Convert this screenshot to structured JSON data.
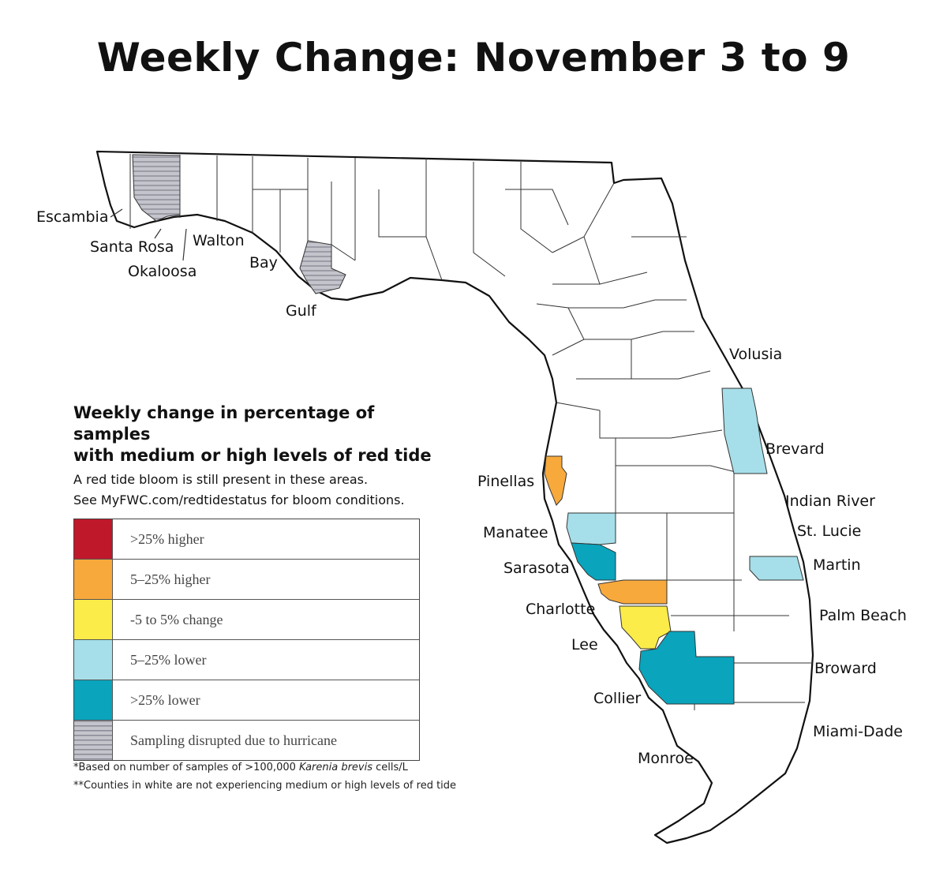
{
  "title": "Weekly Change: November 3 to 9",
  "legend": {
    "heading_line1": "Weekly change in percentage of samples",
    "heading_line2": "with medium or high levels of red tide",
    "sub_line1": "A red tide bloom is still present in these areas.",
    "sub_line2": "See MyFWC.com/redtidestatus for bloom conditions.",
    "items": [
      {
        "label": ">25% higher",
        "color": "#c0182b",
        "pattern": "solid"
      },
      {
        "label": "5–25% higher",
        "color": "#f7a93b",
        "pattern": "solid"
      },
      {
        "label": "-5 to 5% change",
        "color": "#fbec49",
        "pattern": "solid"
      },
      {
        "label": "5–25% lower",
        "color": "#a6dfe9",
        "pattern": "solid"
      },
      {
        "label": ">25% lower",
        "color": "#0aa4bc",
        "pattern": "solid"
      },
      {
        "label": "Sampling disrupted due to hurricane",
        "color": "#b8b8c0",
        "pattern": "stripes"
      }
    ]
  },
  "footnotes": {
    "note1_prefix": "*Based on number of samples of >100,000 ",
    "note1_italic": "Karenia brevis",
    "note1_suffix": " cells/L",
    "note2": "**Counties in white are not experiencing medium or high levels of red tide"
  },
  "counties": {
    "escambia": "Escambia",
    "santa_rosa": "Santa Rosa",
    "okaloosa": "Okaloosa",
    "walton": "Walton",
    "bay": "Bay",
    "gulf": "Gulf",
    "volusia": "Volusia",
    "brevard": "Brevard",
    "indian_river": "Indian River",
    "st_lucie": "St. Lucie",
    "martin": "Martin",
    "palm_beach": "Palm Beach",
    "broward": "Broward",
    "miami_dade": "Miami-Dade",
    "monroe": "Monroe",
    "collier": "Collier",
    "lee": "Lee",
    "charlotte": "Charlotte",
    "sarasota": "Sarasota",
    "manatee": "Manatee",
    "pinellas": "Pinellas"
  },
  "county_status": {
    "Okaloosa": "Sampling disrupted due to hurricane",
    "Gulf": "Sampling disrupted due to hurricane",
    "Pinellas": "5–25% higher",
    "Charlotte": "5–25% higher",
    "Manatee": "5–25% lower",
    "Sarasota": ">25% lower",
    "Lee": "-5 to 5% change",
    "Collier": ">25% lower",
    "Brevard": "5–25% lower",
    "Martin": "5–25% lower"
  }
}
